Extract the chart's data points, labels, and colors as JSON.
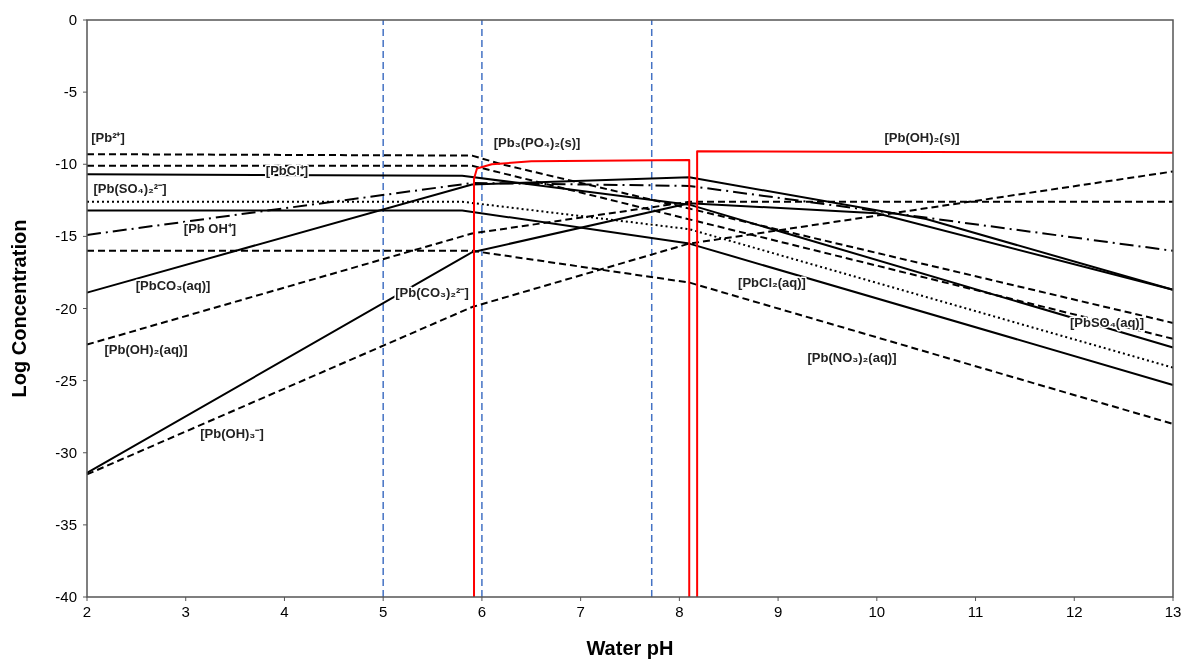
{
  "chart_data": {
    "type": "line",
    "xlabel": "Water pH",
    "ylabel": "Log Concentration",
    "xlim": [
      2,
      13
    ],
    "xticks": [
      2,
      3,
      4,
      5,
      6,
      7,
      8,
      9,
      10,
      11,
      12,
      13
    ],
    "ylim": [
      -40,
      0
    ],
    "yticks": [
      -40,
      -35,
      -30,
      -25,
      -20,
      -15,
      -10,
      -5,
      0
    ],
    "grid": false,
    "series": [
      {
        "color": "#000000",
        "line_style": "dashed",
        "x": [
          2,
          5.9,
          6.2,
          13
        ],
        "values": [
          -9.3,
          -9.4,
          -10,
          -21
        ]
      },
      {
        "color": "#000000",
        "line_style": "dashed",
        "x": [
          2,
          5.9,
          13
        ],
        "values": [
          -10.1,
          -10.1,
          -22.1
        ]
      },
      {
        "color": "#000000",
        "line_style": "solid",
        "x": [
          2,
          5.8,
          8.1,
          13
        ],
        "values": [
          -10.7,
          -10.8,
          -12.8,
          -22.7
        ]
      },
      {
        "color": "#000000",
        "line_style": "dotted",
        "x": [
          2,
          5.8,
          8.1,
          13
        ],
        "values": [
          -12.6,
          -12.6,
          -14.5,
          -24.1
        ]
      },
      {
        "color": "#000000",
        "line_style": "solid",
        "x": [
          2,
          5.8,
          8.1,
          13
        ],
        "values": [
          -13.2,
          -13.2,
          -15.5,
          -25.3
        ]
      },
      {
        "color": "#000000",
        "line_style": "dashdot",
        "x": [
          2,
          5.9,
          8.1,
          13
        ],
        "values": [
          -14.9,
          -11.3,
          -11.5,
          -16
        ]
      },
      {
        "color": "#000000",
        "line_style": "solid",
        "x": [
          2,
          5.9,
          8.1,
          10.5,
          13
        ],
        "values": [
          -18.9,
          -11.4,
          -10.9,
          -13.8,
          -18.7
        ]
      },
      {
        "color": "#000000",
        "line_style": "solid",
        "x": [
          2,
          5.9,
          8.1,
          10,
          13
        ],
        "values": [
          -31.4,
          -16.1,
          -12.7,
          -13.4,
          -18.7
        ]
      },
      {
        "color": "#000000",
        "line_style": "dashed",
        "x": [
          2,
          5.9,
          8.1,
          13
        ],
        "values": [
          -22.5,
          -14.8,
          -12.6,
          -12.6
        ]
      },
      {
        "color": "#000000",
        "line_style": "dashed",
        "x": [
          2,
          5.9,
          8.1,
          13
        ],
        "values": [
          -16,
          -16,
          -18.2,
          -28
        ]
      },
      {
        "color": "#000000",
        "line_style": "dashed",
        "x": [
          2,
          5.9,
          8.1,
          13
        ],
        "values": [
          -31.5,
          -19.9,
          -15.5,
          -10.5
        ]
      },
      {
        "color": "#ff0000",
        "line_style": "solid",
        "x": [
          5.92,
          5.92,
          5.95,
          6.1,
          6.5,
          8.1,
          8.1
        ],
        "values": [
          -40,
          -11,
          -10.3,
          -10,
          -9.8,
          -9.7,
          -40
        ]
      },
      {
        "color": "#ff0000",
        "line_style": "solid",
        "x": [
          8.18,
          8.18,
          13
        ],
        "values": [
          -40,
          -9.1,
          -9.2
        ]
      }
    ],
    "ref_lines": [
      {
        "axis": "x",
        "value": 5,
        "color": "#4472c4",
        "line_style": "dashed"
      },
      {
        "axis": "x",
        "value": 6,
        "color": "#4472c4",
        "line_style": "dashed"
      },
      {
        "axis": "x",
        "value": 7.72,
        "color": "#4472c4",
        "line_style": "dashed"
      }
    ],
    "annotations": [
      "[Pb²⁺]",
      "[PbCl⁺]",
      "[Pb(SO₄)₂²⁻]",
      "[Pb OH⁺]",
      "[PbCO₃(aq)]",
      "[Pb(OH)₂(aq)]",
      "[Pb(OH)₃⁻]",
      "[Pb(CO₃)₂²⁻]",
      "[Pb₃(PO₄)₂(s)]",
      "[Pb(OH)₂(s)]",
      "[PbCl₂(aq)]",
      "[PbSO₄(aq)]",
      "[Pb(NO₃)₂(aq)]"
    ]
  }
}
